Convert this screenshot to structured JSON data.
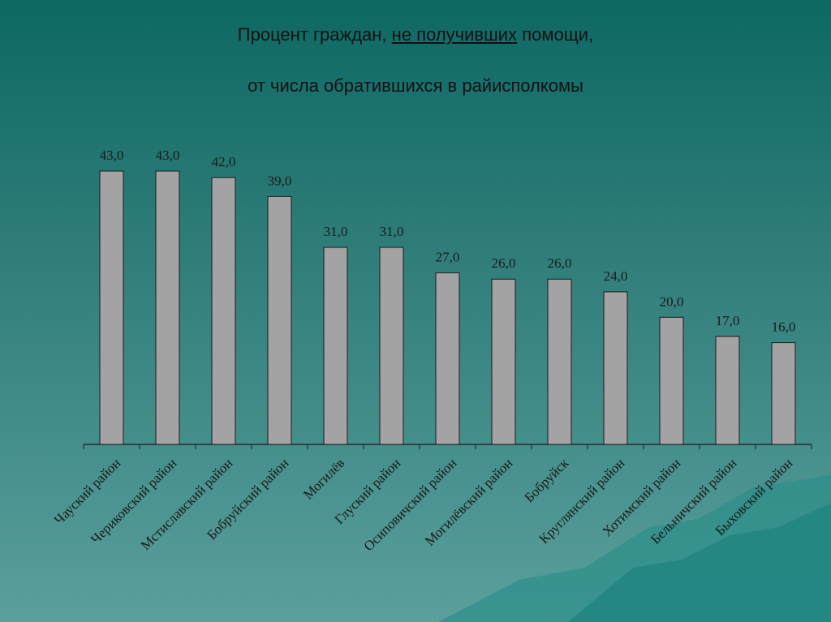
{
  "chart_data": {
    "type": "bar",
    "title": [
      "Процент граждан,",
      "не получивших",
      "помощи,"
    ],
    "subtitle": "от числа обратившихся в райисполкомы",
    "categories": [
      "Чауский район",
      "Чериковский район",
      "Мстиславский район",
      "Бобруйский район",
      "Могилёв",
      "Глуский район",
      "Осиповичский район",
      "Могилёвский район",
      "Бобруйск",
      "Круглянский район",
      "Хотимский район",
      "Бельничский район",
      "Быховский район"
    ],
    "values": [
      43,
      43,
      42,
      39,
      31,
      31,
      27,
      26,
      26,
      24,
      20,
      17,
      16
    ],
    "value_labels": [
      "43,0",
      "43,0",
      "42,0",
      "39,0",
      "31,0",
      "31,0",
      "27,0",
      "26,0",
      "26,0",
      "24,0",
      "20,0",
      "17,0",
      "16,0"
    ],
    "color": "#a3a3a3"
  }
}
